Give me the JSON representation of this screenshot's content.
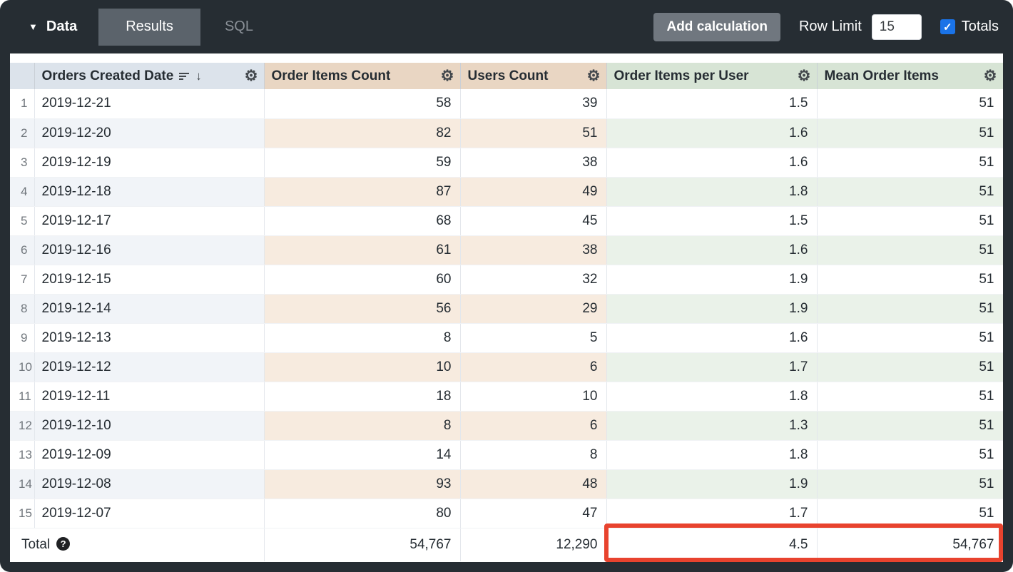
{
  "topbar": {
    "data_tab": "Data",
    "results_tab": "Results",
    "sql_tab": "SQL",
    "add_calculation": "Add calculation",
    "row_limit_label": "Row Limit",
    "row_limit_value": "15",
    "totals_label": "Totals",
    "totals_checked": true
  },
  "colors": {
    "highlight_red": "#e8432e",
    "checkbox_blue": "#1a73e8",
    "dimension_header_blue": "#dce3eb",
    "measure_header_tan": "#e9d6c3",
    "calc_header_green": "#d7e4d5"
  },
  "table": {
    "headers": [
      {
        "label": "Orders Created Date",
        "type": "dimension",
        "sorted_desc": true
      },
      {
        "label": "Order Items Count",
        "type": "measure"
      },
      {
        "label": "Users Count",
        "type": "measure"
      },
      {
        "label": "Order Items per User",
        "type": "table_calculation"
      },
      {
        "label": "Mean Order Items",
        "type": "table_calculation"
      }
    ],
    "rows": [
      {
        "n": "1",
        "date": "2019-12-21",
        "order_items": "58",
        "users": "39",
        "per_user": "1.5",
        "mean": "51"
      },
      {
        "n": "2",
        "date": "2019-12-20",
        "order_items": "82",
        "users": "51",
        "per_user": "1.6",
        "mean": "51"
      },
      {
        "n": "3",
        "date": "2019-12-19",
        "order_items": "59",
        "users": "38",
        "per_user": "1.6",
        "mean": "51"
      },
      {
        "n": "4",
        "date": "2019-12-18",
        "order_items": "87",
        "users": "49",
        "per_user": "1.8",
        "mean": "51"
      },
      {
        "n": "5",
        "date": "2019-12-17",
        "order_items": "68",
        "users": "45",
        "per_user": "1.5",
        "mean": "51"
      },
      {
        "n": "6",
        "date": "2019-12-16",
        "order_items": "61",
        "users": "38",
        "per_user": "1.6",
        "mean": "51"
      },
      {
        "n": "7",
        "date": "2019-12-15",
        "order_items": "60",
        "users": "32",
        "per_user": "1.9",
        "mean": "51"
      },
      {
        "n": "8",
        "date": "2019-12-14",
        "order_items": "56",
        "users": "29",
        "per_user": "1.9",
        "mean": "51"
      },
      {
        "n": "9",
        "date": "2019-12-13",
        "order_items": "8",
        "users": "5",
        "per_user": "1.6",
        "mean": "51"
      },
      {
        "n": "10",
        "date": "2019-12-12",
        "order_items": "10",
        "users": "6",
        "per_user": "1.7",
        "mean": "51"
      },
      {
        "n": "11",
        "date": "2019-12-11",
        "order_items": "18",
        "users": "10",
        "per_user": "1.8",
        "mean": "51"
      },
      {
        "n": "12",
        "date": "2019-12-10",
        "order_items": "8",
        "users": "6",
        "per_user": "1.3",
        "mean": "51"
      },
      {
        "n": "13",
        "date": "2019-12-09",
        "order_items": "14",
        "users": "8",
        "per_user": "1.8",
        "mean": "51"
      },
      {
        "n": "14",
        "date": "2019-12-08",
        "order_items": "93",
        "users": "48",
        "per_user": "1.9",
        "mean": "51"
      },
      {
        "n": "15",
        "date": "2019-12-07",
        "order_items": "80",
        "users": "47",
        "per_user": "1.7",
        "mean": "51"
      }
    ],
    "total": {
      "label": "Total",
      "order_items": "54,767",
      "users": "12,290",
      "per_user": "4.5",
      "mean": "54,767"
    }
  }
}
